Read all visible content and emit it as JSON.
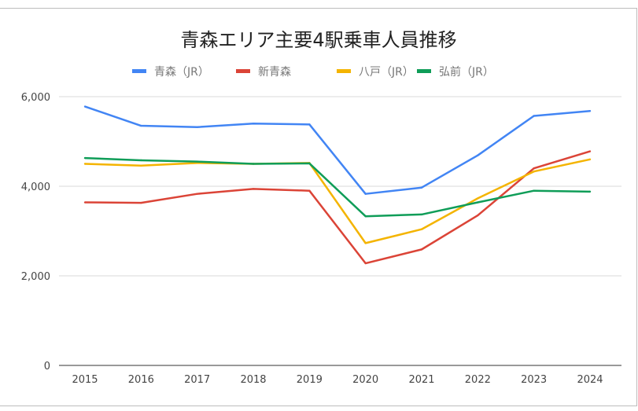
{
  "chart_data": {
    "type": "line",
    "title": "青森エリア主要4駅乗車人員推移",
    "legend_position": "top",
    "grid": true,
    "ylim": [
      0,
      6000
    ],
    "yticks": [
      "0",
      "2,000",
      "4,000",
      "6,000"
    ],
    "ytick_values": [
      0,
      2000,
      4000,
      6000
    ],
    "x": [
      "2015",
      "2016",
      "2017",
      "2018",
      "2019",
      "2020",
      "2021",
      "2022",
      "2023",
      "2024"
    ],
    "series": [
      {
        "name": "青森（JR）",
        "color": "#4285f4",
        "values": [
          5780,
          5350,
          5320,
          5400,
          5380,
          3830,
          3970,
          4690,
          5570,
          5680
        ]
      },
      {
        "name": "新青森",
        "color": "#db4437",
        "values": [
          3640,
          3630,
          3830,
          3940,
          3900,
          2280,
          2590,
          3350,
          4400,
          4780
        ]
      },
      {
        "name": "八戸（JR）",
        "color": "#f4b400",
        "values": [
          4500,
          4460,
          4520,
          4500,
          4520,
          2730,
          3040,
          3730,
          4330,
          4600
        ]
      },
      {
        "name": "弘前（JR）",
        "color": "#0f9d58",
        "values": [
          4630,
          4580,
          4550,
          4500,
          4510,
          3330,
          3370,
          3640,
          3900,
          3880
        ]
      }
    ]
  }
}
